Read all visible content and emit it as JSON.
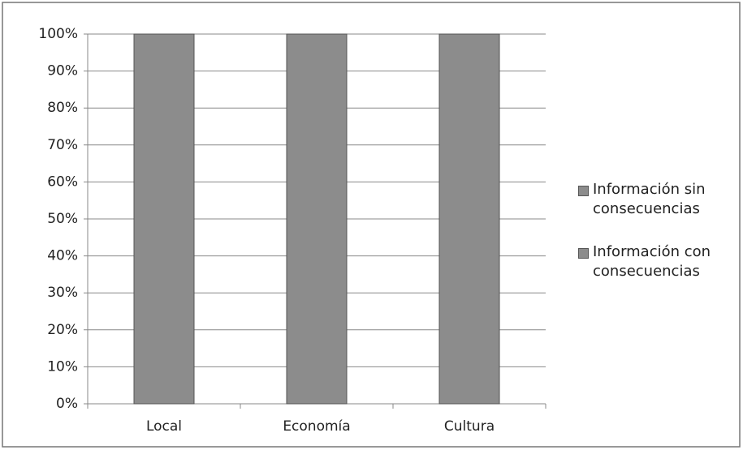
{
  "chart_data": {
    "type": "stacked_bar",
    "categories": [
      "Local",
      "Economía",
      "Cultura"
    ],
    "series": [
      {
        "name": "Información sin consecuencias",
        "color": "#8c8c8c",
        "values": [
          100,
          100,
          100
        ]
      },
      {
        "name": "Información con consecuencias",
        "color": "#8c8c8c",
        "values": [
          0,
          0,
          0
        ]
      }
    ],
    "ylim": [
      0,
      100
    ],
    "yticks": [
      {
        "value": 0,
        "label": "0%"
      },
      {
        "value": 10,
        "label": "10%"
      },
      {
        "value": 20,
        "label": "20%"
      },
      {
        "value": 30,
        "label": "30%"
      },
      {
        "value": 40,
        "label": "40%"
      },
      {
        "value": 50,
        "label": "50%"
      },
      {
        "value": 60,
        "label": "60%"
      },
      {
        "value": 70,
        "label": "70%"
      },
      {
        "value": 80,
        "label": "80%"
      },
      {
        "value": 90,
        "label": "90%"
      },
      {
        "value": 100,
        "label": "100%"
      }
    ],
    "grid": true,
    "legend": "right"
  }
}
